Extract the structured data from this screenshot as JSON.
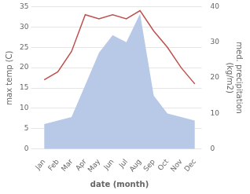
{
  "chart_data": {
    "type": "line",
    "xlabel": "date (month)",
    "ylabel": "max temp (C)",
    "y2label": "med. precipitation\n(kg/m2)",
    "categories": [
      "Jan",
      "Feb",
      "Mar",
      "Apr",
      "May",
      "Jun",
      "Jul",
      "Aug",
      "Sep",
      "Oct",
      "Nov",
      "Dec"
    ],
    "series": [
      {
        "type": "line",
        "color": "#c0504d",
        "values": [
          17,
          19,
          24,
          33,
          32,
          33,
          32,
          34,
          29,
          25,
          20,
          16
        ]
      },
      {
        "type": "area",
        "color": "#b8c9e8",
        "axis": "y2",
        "values": [
          7,
          8,
          9,
          18,
          27,
          32,
          30,
          38,
          15,
          10,
          9,
          8
        ]
      }
    ],
    "ylim": [
      0,
      35
    ],
    "yticks": [
      0,
      5,
      10,
      15,
      20,
      25,
      30,
      35
    ],
    "y2lim": [
      0,
      40
    ],
    "y2ticks": [
      0,
      10,
      20,
      30,
      40
    ],
    "grid": true
  }
}
